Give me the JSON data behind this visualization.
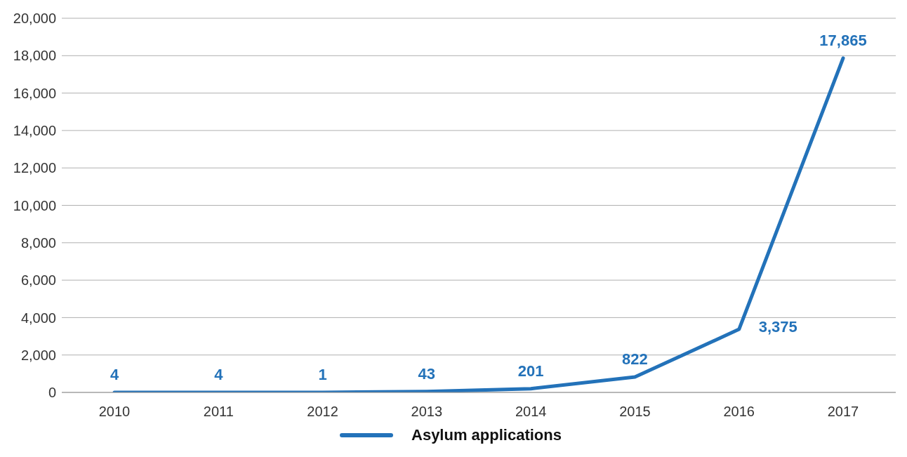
{
  "chart_data": {
    "type": "line",
    "categories": [
      "2010",
      "2011",
      "2012",
      "2013",
      "2014",
      "2015",
      "2016",
      "2017"
    ],
    "series": [
      {
        "name": "Asylum applications",
        "color": "#2372b9",
        "values": [
          4,
          4,
          1,
          43,
          201,
          822,
          3375,
          17865
        ],
        "value_labels": [
          "4",
          "4",
          "1",
          "43",
          "201",
          "822",
          "3,375",
          "17,865"
        ]
      }
    ],
    "ylim": [
      0,
      20000
    ],
    "yticks": [
      {
        "value": 0,
        "label": "0"
      },
      {
        "value": 2000,
        "label": "2,000"
      },
      {
        "value": 4000,
        "label": "4,000"
      },
      {
        "value": 6000,
        "label": "6,000"
      },
      {
        "value": 8000,
        "label": "8,000"
      },
      {
        "value": 10000,
        "label": "10,000"
      },
      {
        "value": 12000,
        "label": "12,000"
      },
      {
        "value": 14000,
        "label": "14,000"
      },
      {
        "value": 16000,
        "label": "16,000"
      },
      {
        "value": 18000,
        "label": "18,000"
      },
      {
        "value": 20000,
        "label": "20,000"
      }
    ],
    "grid": "y",
    "legend": "bottom",
    "marker": "none",
    "line_style": "solid"
  }
}
